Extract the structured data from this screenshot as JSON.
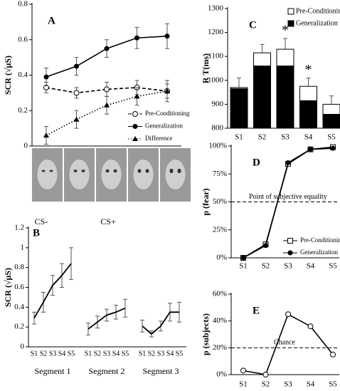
{
  "chart_data": [
    {
      "type": "line",
      "panel_label": "A",
      "y_label": "SCR (√μS)",
      "ylim": [
        0,
        0.8
      ],
      "yticks": [
        0,
        0.2,
        0.4,
        0.6,
        0.8
      ],
      "stimulus_labels": [
        "CS-",
        "CS+"
      ],
      "series": [
        {
          "name": "Pre-Conditioning",
          "color": "#000000",
          "marker": "open-circle",
          "dash": "dashed",
          "values": [
            0.33,
            0.3,
            0.32,
            0.33,
            0.31
          ],
          "errors": [
            0.03,
            0.03,
            0.04,
            0.04,
            0.04
          ]
        },
        {
          "name": "Generalization",
          "color": "#000000",
          "marker": "circle",
          "dash": "solid",
          "values": [
            0.39,
            0.45,
            0.55,
            0.61,
            0.62
          ],
          "errors": [
            0.05,
            0.05,
            0.05,
            0.06,
            0.07
          ]
        },
        {
          "name": "Difference",
          "color": "#000000",
          "marker": "triangle",
          "dash": "dotted",
          "values": [
            0.06,
            0.15,
            0.23,
            0.28,
            0.31
          ],
          "errors": [
            0.05,
            0.05,
            0.05,
            0.05,
            0.06
          ]
        }
      ]
    },
    {
      "type": "grouped-line",
      "panel_label": "B",
      "y_label": "SCR (√μS)",
      "ylim": [
        0,
        1.2
      ],
      "yticks": [
        0,
        0.2,
        0.4,
        0.6,
        0.8,
        1,
        1.2
      ],
      "categories": [
        "S1",
        "S2",
        "S3",
        "S4",
        "S5"
      ],
      "groups": [
        {
          "name": "Segment 1",
          "values": [
            0.29,
            0.45,
            0.62,
            0.72,
            0.84
          ],
          "errors": [
            0.06,
            0.1,
            0.1,
            0.12,
            0.16
          ]
        },
        {
          "name": "Segment 2",
          "values": [
            0.18,
            0.25,
            0.32,
            0.35,
            0.39
          ],
          "errors": [
            0.06,
            0.06,
            0.06,
            0.07,
            0.09
          ]
        },
        {
          "name": "Segment 3",
          "values": [
            0.21,
            0.13,
            0.21,
            0.35,
            0.35
          ],
          "errors": [
            0.06,
            0.03,
            0.05,
            0.09,
            0.1
          ]
        }
      ]
    },
    {
      "type": "overlay-bar",
      "panel_label": "C",
      "y_label": "R T(ms)",
      "ylim": [
        800,
        1300
      ],
      "yticks": [
        800,
        900,
        1000,
        1100,
        1200,
        1300
      ],
      "categories": [
        "S1",
        "S2",
        "S3",
        "S4",
        "S5"
      ],
      "asterisks": [
        null,
        null,
        "*",
        "*",
        null
      ],
      "series": [
        {
          "name": "Pre-Conditioning",
          "color": "#ffffff",
          "values": [
            970,
            1115,
            1130,
            975,
            900
          ],
          "errors": [
            40,
            35,
            45,
            35,
            35
          ]
        },
        {
          "name": "Generalization",
          "color": "#000000",
          "values": [
            965,
            1060,
            1060,
            915,
            858
          ]
        }
      ]
    },
    {
      "type": "line",
      "panel_label": "D",
      "y_label": "p (fear)",
      "ylim": [
        0,
        100
      ],
      "yticks": [
        {
          "value": 0,
          "label": "0%"
        },
        {
          "value": 25,
          "label": "25%"
        },
        {
          "value": 50,
          "label": "50%"
        },
        {
          "value": 75,
          "label": "75%"
        },
        {
          "value": 100,
          "label": "100%"
        }
      ],
      "categories": [
        "S1",
        "S2",
        "S3",
        "S4",
        "S5"
      ],
      "reference_line": {
        "value": 50,
        "label": "Point of subjective equality"
      },
      "series": [
        {
          "name": "Pre-Conditioning",
          "color": "#000000",
          "marker": "open-square",
          "dash": "solid",
          "values": [
            0,
            12,
            84,
            97,
            99
          ]
        },
        {
          "name": "Generalization",
          "color": "#000000",
          "marker": "circle",
          "dash": "solid",
          "values": [
            0,
            11,
            85,
            97,
            98
          ]
        }
      ]
    },
    {
      "type": "line",
      "panel_label": "E",
      "y_label": "p (subjects)",
      "ylim": [
        0,
        60
      ],
      "yticks": [
        {
          "value": 0,
          "label": "0%"
        },
        {
          "value": 20,
          "label": "20%"
        },
        {
          "value": 40,
          "label": "40%"
        },
        {
          "value": 60,
          "label": "60%"
        }
      ],
      "categories": [
        "S1",
        "S2",
        "S3",
        "S4",
        "S5"
      ],
      "reference_line": {
        "value": 20,
        "label": "Chance"
      },
      "series": [
        {
          "color": "#000000",
          "marker": "open-circle",
          "dash": "solid",
          "values": [
            3,
            0,
            45,
            36,
            15
          ]
        }
      ]
    }
  ]
}
